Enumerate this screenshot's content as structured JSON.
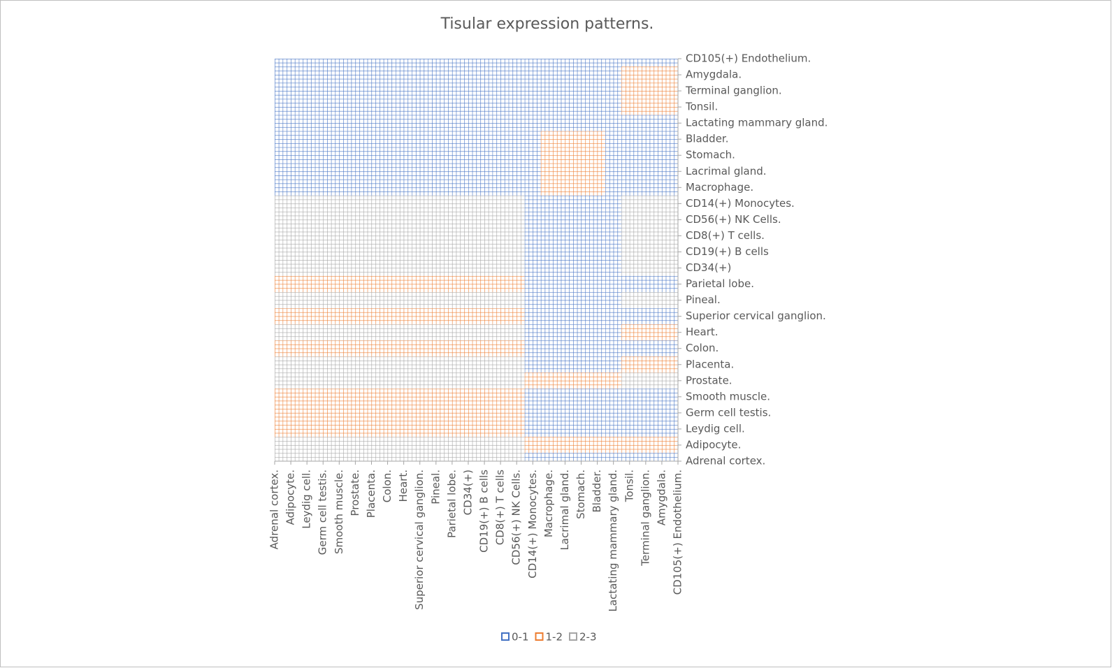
{
  "chart_data": {
    "type": "surface",
    "title": "Tisular expression patterns.",
    "categories": [
      "Adrenal cortex.",
      "Adipocyte.",
      "Leydig cell.",
      "Germ cell testis.",
      "Smooth muscle.",
      "Prostate.",
      "Placenta.",
      "Colon.",
      "Heart.",
      "Superior cervical ganglion.",
      "Pineal.",
      "Parietal lobe.",
      "CD34(+)",
      "CD19(+) B cells",
      "CD8(+) T cells",
      "CD56(+) NK Cells.",
      "CD14(+) Monocytes.",
      "Macrophage.",
      "Lacrimal gland.",
      "Stomach.",
      "Bladder.",
      "Lactating mammary gland.",
      "Tonsil.",
      "Terminal ganglion.",
      "Amygdala.",
      "CD105(+) Endothelium."
    ],
    "bands": [
      {
        "name": "0-1",
        "color": "#4472c4",
        "from": 0,
        "to": 1
      },
      {
        "name": "1-2",
        "color": "#ed7d31",
        "from": 1,
        "to": 2
      },
      {
        "name": "2-3",
        "color": "#a5a5a5",
        "from": 2,
        "to": 3
      }
    ],
    "series": [
      {
        "name": "Adrenal cortex.",
        "values": [
          2.5,
          2.5,
          2.5,
          2.5,
          2.5,
          2.5,
          2.5,
          2.5,
          2.5,
          2.5,
          2.5,
          2.5,
          2.5,
          2.5,
          2.5,
          2.5,
          0.5,
          0.5,
          0.5,
          0.5,
          0.5,
          0.5,
          0.5,
          0.5,
          0.5,
          0.5
        ]
      },
      {
        "name": "Adipocyte.",
        "values": [
          2.5,
          2.5,
          2.5,
          2.5,
          2.5,
          2.5,
          2.5,
          2.5,
          2.5,
          2.5,
          2.5,
          2.5,
          2.5,
          2.5,
          2.5,
          2.5,
          1.5,
          1.5,
          1.5,
          1.5,
          1.5,
          1.5,
          1.5,
          1.5,
          1.5,
          1.5
        ]
      },
      {
        "name": "Leydig cell.",
        "values": [
          1.5,
          1.5,
          1.5,
          1.5,
          1.5,
          1.5,
          1.5,
          1.5,
          1.5,
          1.5,
          1.5,
          1.5,
          1.5,
          1.5,
          1.5,
          1.5,
          0.5,
          0.5,
          0.5,
          0.5,
          0.5,
          0.5,
          0.5,
          0.5,
          0.5,
          0.5
        ]
      },
      {
        "name": "Germ cell testis.",
        "values": [
          1.5,
          1.5,
          1.5,
          1.5,
          1.5,
          1.5,
          1.5,
          1.5,
          1.5,
          1.5,
          1.5,
          1.5,
          1.5,
          1.5,
          1.5,
          1.5,
          0.5,
          0.5,
          0.5,
          0.5,
          0.5,
          0.5,
          0.5,
          0.5,
          0.5,
          0.5
        ]
      },
      {
        "name": "Smooth muscle.",
        "values": [
          1.5,
          1.5,
          1.5,
          1.5,
          1.5,
          1.5,
          1.5,
          1.5,
          1.5,
          1.5,
          1.5,
          1.5,
          1.5,
          1.5,
          1.5,
          1.5,
          0.5,
          0.5,
          0.5,
          0.5,
          0.5,
          0.5,
          0.5,
          0.5,
          0.5,
          0.5
        ]
      },
      {
        "name": "Prostate.",
        "values": [
          2.5,
          2.5,
          2.5,
          2.5,
          2.5,
          2.5,
          2.5,
          2.5,
          2.5,
          2.5,
          2.5,
          2.5,
          2.5,
          2.5,
          2.5,
          2.5,
          1.5,
          1.5,
          1.5,
          1.5,
          1.5,
          1.5,
          2.5,
          2.5,
          2.5,
          2.5
        ]
      },
      {
        "name": "Placenta.",
        "values": [
          2.5,
          2.5,
          2.5,
          2.5,
          2.5,
          2.5,
          2.5,
          2.5,
          2.5,
          2.5,
          2.5,
          2.5,
          2.5,
          2.5,
          2.5,
          2.5,
          0.5,
          0.5,
          0.5,
          0.5,
          0.5,
          0.5,
          1.5,
          1.5,
          1.5,
          1.5
        ]
      },
      {
        "name": "Colon.",
        "values": [
          1.5,
          1.5,
          1.5,
          1.5,
          1.5,
          1.5,
          1.5,
          1.5,
          1.5,
          1.5,
          1.5,
          1.5,
          1.5,
          1.5,
          1.5,
          1.5,
          0.5,
          0.5,
          0.5,
          0.5,
          0.5,
          0.5,
          0.5,
          0.5,
          0.5,
          0.5
        ]
      },
      {
        "name": "Heart.",
        "values": [
          2.5,
          2.5,
          2.5,
          2.5,
          2.5,
          2.5,
          2.5,
          2.5,
          2.5,
          2.5,
          2.5,
          2.5,
          2.5,
          2.5,
          2.5,
          2.5,
          0.5,
          0.5,
          0.5,
          0.5,
          0.5,
          0.5,
          1.5,
          1.5,
          1.5,
          1.5
        ]
      },
      {
        "name": "Superior cervical ganglion.",
        "values": [
          1.5,
          1.5,
          1.5,
          1.5,
          1.5,
          1.5,
          1.5,
          1.5,
          1.5,
          1.5,
          1.5,
          1.5,
          1.5,
          1.5,
          1.5,
          1.5,
          0.5,
          0.5,
          0.5,
          0.5,
          0.5,
          0.5,
          0.5,
          0.5,
          0.5,
          0.5
        ]
      },
      {
        "name": "Pineal.",
        "values": [
          2.5,
          2.5,
          2.5,
          2.5,
          2.5,
          2.5,
          2.5,
          2.5,
          2.5,
          2.5,
          2.5,
          2.5,
          2.5,
          2.5,
          2.5,
          2.5,
          0.5,
          0.5,
          0.5,
          0.5,
          0.5,
          0.5,
          2.5,
          2.5,
          2.5,
          2.5
        ]
      },
      {
        "name": "Parietal lobe.",
        "values": [
          1.5,
          1.5,
          1.5,
          1.5,
          1.5,
          1.5,
          1.5,
          1.5,
          1.5,
          1.5,
          1.5,
          1.5,
          1.5,
          1.5,
          1.5,
          1.5,
          0.5,
          0.5,
          0.5,
          0.5,
          0.5,
          0.5,
          0.5,
          0.5,
          0.5,
          0.5
        ]
      },
      {
        "name": "CD34(+)",
        "values": [
          2.5,
          2.5,
          2.5,
          2.5,
          2.5,
          2.5,
          2.5,
          2.5,
          2.5,
          2.5,
          2.5,
          2.5,
          2.5,
          2.5,
          2.5,
          2.5,
          0.5,
          0.5,
          0.5,
          0.5,
          0.5,
          0.5,
          2.5,
          2.5,
          2.5,
          2.5
        ]
      },
      {
        "name": "CD19(+) B cells",
        "values": [
          2.5,
          2.5,
          2.5,
          2.5,
          2.5,
          2.5,
          2.5,
          2.5,
          2.5,
          2.5,
          2.5,
          2.5,
          2.5,
          2.5,
          2.5,
          2.5,
          0.5,
          0.5,
          0.5,
          0.5,
          0.5,
          0.5,
          2.5,
          2.5,
          2.5,
          2.5
        ]
      },
      {
        "name": "CD8(+) T cells.",
        "values": [
          2.5,
          2.5,
          2.5,
          2.5,
          2.5,
          2.5,
          2.5,
          2.5,
          2.5,
          2.5,
          2.5,
          2.5,
          2.5,
          2.5,
          2.5,
          2.5,
          0.5,
          0.5,
          0.5,
          0.5,
          0.5,
          0.5,
          2.5,
          2.5,
          2.5,
          2.5
        ]
      },
      {
        "name": "CD56(+) NK Cells.",
        "values": [
          2.5,
          2.5,
          2.5,
          2.5,
          2.5,
          2.5,
          2.5,
          2.5,
          2.5,
          2.5,
          2.5,
          2.5,
          2.5,
          2.5,
          2.5,
          2.5,
          0.5,
          0.5,
          0.5,
          0.5,
          0.5,
          0.5,
          2.5,
          2.5,
          2.5,
          2.5
        ]
      },
      {
        "name": "CD14(+) Monocytes.",
        "values": [
          2.5,
          2.5,
          2.5,
          2.5,
          2.5,
          2.5,
          2.5,
          2.5,
          2.5,
          2.5,
          2.5,
          2.5,
          2.5,
          2.5,
          2.5,
          2.5,
          0.5,
          0.5,
          0.5,
          0.5,
          0.5,
          0.5,
          2.5,
          2.5,
          2.5,
          2.5
        ]
      },
      {
        "name": "Macrophage.",
        "values": [
          0.5,
          0.5,
          0.5,
          0.5,
          0.5,
          0.5,
          0.5,
          0.5,
          0.5,
          0.5,
          0.5,
          0.5,
          0.5,
          0.5,
          0.5,
          0.5,
          0.5,
          1.5,
          1.5,
          1.5,
          1.5,
          0.5,
          0.5,
          0.5,
          0.5,
          0.5
        ]
      },
      {
        "name": "Lacrimal gland.",
        "values": [
          0.5,
          0.5,
          0.5,
          0.5,
          0.5,
          0.5,
          0.5,
          0.5,
          0.5,
          0.5,
          0.5,
          0.5,
          0.5,
          0.5,
          0.5,
          0.5,
          0.5,
          1.5,
          1.5,
          1.5,
          1.5,
          0.5,
          0.5,
          0.5,
          0.5,
          0.5
        ]
      },
      {
        "name": "Stomach.",
        "values": [
          0.5,
          0.5,
          0.5,
          0.5,
          0.5,
          0.5,
          0.5,
          0.5,
          0.5,
          0.5,
          0.5,
          0.5,
          0.5,
          0.5,
          0.5,
          0.5,
          0.5,
          1.5,
          1.5,
          1.5,
          1.5,
          0.5,
          0.5,
          0.5,
          0.5,
          0.5
        ]
      },
      {
        "name": "Bladder.",
        "values": [
          0.5,
          0.5,
          0.5,
          0.5,
          0.5,
          0.5,
          0.5,
          0.5,
          0.5,
          0.5,
          0.5,
          0.5,
          0.5,
          0.5,
          0.5,
          0.5,
          0.5,
          1.5,
          1.5,
          1.5,
          1.5,
          0.5,
          0.5,
          0.5,
          0.5,
          0.5
        ]
      },
      {
        "name": "Lactating mammary gland.",
        "values": [
          0.5,
          0.5,
          0.5,
          0.5,
          0.5,
          0.5,
          0.5,
          0.5,
          0.5,
          0.5,
          0.5,
          0.5,
          0.5,
          0.5,
          0.5,
          0.5,
          0.5,
          0.5,
          0.5,
          0.5,
          0.5,
          0.5,
          0.5,
          0.5,
          0.5,
          0.5
        ]
      },
      {
        "name": "Tonsil.",
        "values": [
          0.5,
          0.5,
          0.5,
          0.5,
          0.5,
          0.5,
          0.5,
          0.5,
          0.5,
          0.5,
          0.5,
          0.5,
          0.5,
          0.5,
          0.5,
          0.5,
          0.5,
          0.5,
          0.5,
          0.5,
          0.5,
          0.5,
          1.5,
          1.5,
          1.5,
          1.5
        ]
      },
      {
        "name": "Terminal ganglion.",
        "values": [
          0.5,
          0.5,
          0.5,
          0.5,
          0.5,
          0.5,
          0.5,
          0.5,
          0.5,
          0.5,
          0.5,
          0.5,
          0.5,
          0.5,
          0.5,
          0.5,
          0.5,
          0.5,
          0.5,
          0.5,
          0.5,
          0.5,
          1.5,
          1.5,
          1.5,
          1.5
        ]
      },
      {
        "name": "Amygdala.",
        "values": [
          0.5,
          0.5,
          0.5,
          0.5,
          0.5,
          0.5,
          0.5,
          0.5,
          0.5,
          0.5,
          0.5,
          0.5,
          0.5,
          0.5,
          0.5,
          0.5,
          0.5,
          0.5,
          0.5,
          0.5,
          0.5,
          0.5,
          1.5,
          1.5,
          1.5,
          1.5
        ]
      },
      {
        "name": "CD105(+) Endothelium.",
        "values": [
          0.5,
          0.5,
          0.5,
          0.5,
          0.5,
          0.5,
          0.5,
          0.5,
          0.5,
          0.5,
          0.5,
          0.5,
          0.5,
          0.5,
          0.5,
          0.5,
          0.5,
          0.5,
          0.5,
          0.5,
          0.5,
          0.5,
          0.5,
          0.5,
          0.5,
          0.5
        ]
      }
    ]
  }
}
